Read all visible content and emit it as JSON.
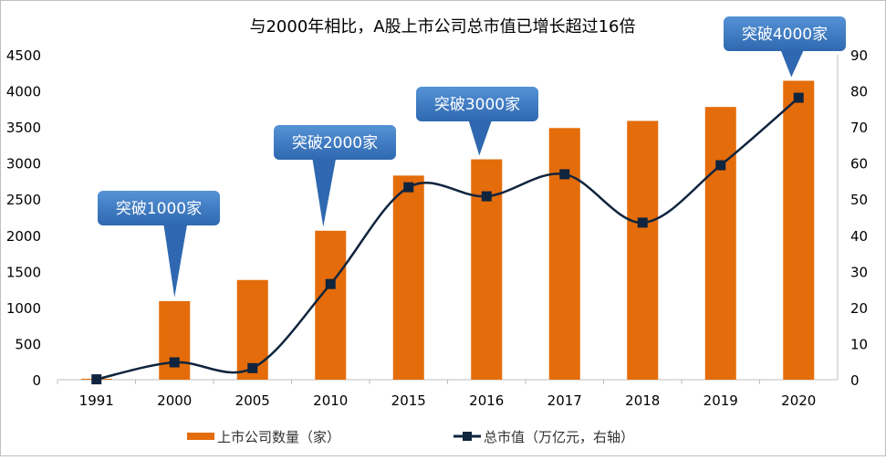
{
  "chart_data": {
    "type": "bar",
    "title": "与2000年相比，A股上市公司总市值已增长超过16倍",
    "categories": [
      "1991",
      "2000",
      "2005",
      "2010",
      "2015",
      "2016",
      "2017",
      "2018",
      "2019",
      "2020"
    ],
    "series": [
      {
        "name": "上市公司数量（家）",
        "type": "bar",
        "axis": "left",
        "color": "#E46C0A",
        "values": [
          13,
          1088,
          1381,
          2063,
          2827,
          3052,
          3485,
          3584,
          3777,
          4140
        ]
      },
      {
        "name": "总市值（万亿元，右轴）",
        "type": "line",
        "axis": "right",
        "color": "#0F243E",
        "smooth": true,
        "marker": "square",
        "values": [
          0.1,
          4.8,
          3.2,
          26.5,
          53.3,
          50.8,
          56.9,
          43.5,
          59.4,
          78.1
        ]
      }
    ],
    "left_axis": {
      "range": [
        0,
        4500
      ],
      "ticks": [
        "0",
        "500",
        "1000",
        "1500",
        "2000",
        "2500",
        "3000",
        "3500",
        "4000",
        "4500"
      ]
    },
    "right_axis": {
      "range": [
        0,
        90
      ],
      "ticks": [
        "0",
        "10",
        "20",
        "30",
        "40",
        "50",
        "60",
        "70",
        "80",
        "90"
      ]
    },
    "grid": false,
    "legend_position": "bottom",
    "annotations": [
      {
        "text": "突破1000家",
        "category": "2000",
        "color": "#3B78C2"
      },
      {
        "text": "突破2000家",
        "category": "2010",
        "color": "#3B78C2"
      },
      {
        "text": "突破3000家",
        "category": "2016",
        "color": "#3B78C2"
      },
      {
        "text": "突破4000家",
        "category": "2020",
        "color": "#3B78C2"
      }
    ]
  }
}
